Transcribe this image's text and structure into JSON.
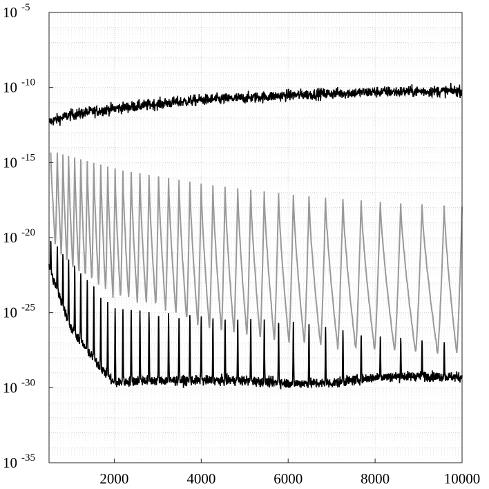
{
  "chart_data": {
    "type": "line",
    "title": "",
    "xlabel": "",
    "ylabel": "",
    "xlim": [
      500,
      10000
    ],
    "ylim": [
      1e-35,
      1e-05
    ],
    "yscale": "log",
    "grid": true,
    "x_ticks": [
      {
        "value": 2000,
        "label": "2000"
      },
      {
        "value": 4000,
        "label": "4000"
      },
      {
        "value": 6000,
        "label": "6000"
      },
      {
        "value": 8000,
        "label": "8000"
      },
      {
        "value": 10000,
        "label": "10000"
      }
    ],
    "y_ticks": [
      {
        "value": 1e-05,
        "base": "10",
        "exp": "-5"
      },
      {
        "value": 1e-10,
        "base": "10",
        "exp": "-10"
      },
      {
        "value": 1e-15,
        "base": "10",
        "exp": "-15"
      },
      {
        "value": 1e-20,
        "base": "10",
        "exp": "-20"
      },
      {
        "value": 1e-25,
        "base": "10",
        "exp": "-25"
      },
      {
        "value": 1e-30,
        "base": "10",
        "exp": "-30"
      },
      {
        "value": 1e-35,
        "base": "10",
        "exp": "-35"
      }
    ],
    "series": [
      {
        "color": "#000000",
        "style": "noisy band",
        "x": [
          500,
          1000,
          2000,
          3000,
          4000,
          5000,
          6000,
          7000,
          8000,
          9000,
          10000
        ],
        "y": [
          5e-13,
          1.5e-12,
          4e-12,
          8e-12,
          1.5e-11,
          2e-11,
          3e-11,
          4e-11,
          5e-11,
          5.5e-11,
          6e-11
        ]
      },
      {
        "color": "#999999",
        "style": "sawtooth spikes",
        "spike_x": [
          540,
          690,
          820,
          950,
          1090,
          1230,
          1380,
          1530,
          1690,
          1850,
          2020,
          2200,
          2390,
          2590,
          2800,
          3020,
          3250,
          3490,
          3740,
          4000,
          4270,
          4550,
          4840,
          5140,
          5450,
          5780,
          6120,
          6480,
          6860,
          7260,
          7680,
          8120,
          8590,
          9080,
          9590
        ],
        "peak_x": [
          500,
          2000,
          4000,
          6000,
          8000,
          10000
        ],
        "peak_y": [
          5e-15,
          3e-16,
          3e-17,
          6e-18,
          2e-18,
          1e-18
        ],
        "trough_x": [
          500,
          1000,
          2000,
          3000,
          4000,
          5000,
          6000,
          7000,
          8000,
          9000,
          10000
        ],
        "trough_y": [
          1e-20,
          1e-22,
          1e-24,
          3e-25,
          1e-26,
          3e-27,
          1e-27,
          5e-28,
          3e-28,
          2e-28,
          2e-28
        ]
      },
      {
        "color": "#000000",
        "style": "noisy floor with spikes",
        "floor_x": [
          500,
          1000,
          1500,
          2000,
          2500,
          3000,
          4000,
          5000,
          6000,
          7000,
          8000,
          9000,
          10000
        ],
        "floor_y": [
          1e-22,
          1e-26,
          1e-28,
          2e-30,
          3e-30,
          3e-30,
          3e-30,
          3e-30,
          2e-30,
          2e-30,
          5e-30,
          6e-30,
          5e-30
        ],
        "spike_x": [
          540,
          690,
          820,
          950,
          1090,
          1230,
          1380,
          1530,
          1690,
          1850,
          2020,
          2200,
          2390,
          2590,
          2800,
          3020,
          3250,
          3490,
          3740,
          4000,
          4270,
          4550,
          4840,
          5140,
          5450,
          5780,
          6120,
          6480,
          6860,
          7260,
          7680,
          8120,
          8590,
          9080,
          9590
        ],
        "spike_peak_x": [
          500,
          1000,
          2000,
          4000,
          6000,
          8000,
          10000
        ],
        "spike_peak_y": [
          1e-20,
          3e-22,
          2e-25,
          6e-26,
          3e-26,
          3e-27,
          1e-27
        ]
      }
    ]
  }
}
